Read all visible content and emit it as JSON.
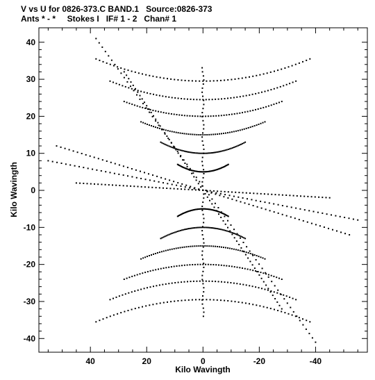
{
  "header": {
    "line1": "V vs U for 0826-373.C BAND.1   Source:0826-373",
    "line2": "Ants * - *     Stokes I   IF# 1 - 2   Chan# 1"
  },
  "chart_data": {
    "type": "scatter",
    "title": "V vs U for 0826-373.C BAND.1   Source:0826-373",
    "subtitle": "Ants * - *     Stokes I   IF# 1 - 2   Chan# 1",
    "xlabel": "Kilo Wavingth",
    "ylabel": "Kilo Wavingth",
    "xlim": [
      58.3,
      -58.4
    ],
    "ylim": [
      -43.7,
      43.9
    ],
    "x_inverted": true,
    "grid": false,
    "legend": "none",
    "marker_color": "#000000",
    "x_ticks": [
      "40",
      "20",
      "0",
      "-20",
      "-40"
    ],
    "x_tick_values": [
      40,
      20,
      0,
      -20,
      -40
    ],
    "y_ticks": [
      "40",
      "30",
      "20",
      "10",
      "0",
      "-10",
      "-20",
      "-30",
      "-40"
    ],
    "y_tick_values": [
      40,
      30,
      20,
      10,
      0,
      -10,
      -20,
      -30,
      -40
    ],
    "tracks": [
      {
        "center": [
          0,
          29.5
        ],
        "halfwidth": 38,
        "sag": 6
      },
      {
        "center": [
          0,
          24.5
        ],
        "halfwidth": 33,
        "sag": 5
      },
      {
        "center": [
          0,
          20
        ],
        "halfwidth": 28,
        "sag": 4
      },
      {
        "center": [
          0,
          15
        ],
        "halfwidth": 22,
        "sag": 3.5
      },
      {
        "center": [
          0,
          10
        ],
        "halfwidth": 15,
        "sag": 3
      },
      {
        "center": [
          0,
          5
        ],
        "halfwidth": 9,
        "sag": 2
      },
      {
        "center": [
          0,
          -29.5
        ],
        "halfwidth": 38,
        "sag": -6
      },
      {
        "center": [
          0,
          -24.5
        ],
        "halfwidth": 33,
        "sag": -5
      },
      {
        "center": [
          0,
          -20
        ],
        "halfwidth": 28,
        "sag": -4
      },
      {
        "center": [
          0,
          -15
        ],
        "halfwidth": 22,
        "sag": -3.5
      },
      {
        "center": [
          0,
          -10
        ],
        "halfwidth": 15,
        "sag": -3
      },
      {
        "center": [
          0,
          -5
        ],
        "halfwidth": 9,
        "sag": -2
      }
    ],
    "arms": [
      {
        "from": [
          38,
          41
        ],
        "to": [
          -40,
          -41
        ]
      },
      {
        "from": [
          55,
          8
        ],
        "to": [
          -55,
          -8
        ]
      },
      {
        "from": [
          52,
          12
        ],
        "to": [
          -52,
          -12
        ]
      },
      {
        "from": [
          45,
          2
        ],
        "to": [
          -45,
          -2
        ]
      },
      {
        "from": [
          28,
          32
        ],
        "to": [
          -28,
          -32
        ]
      }
    ]
  }
}
